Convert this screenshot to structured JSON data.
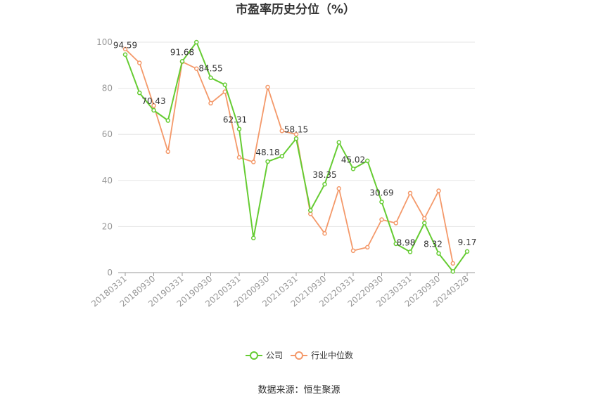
{
  "chart_data": {
    "type": "line",
    "title": "市盈率历史分位（%）",
    "source": "数据来源：恒生聚源",
    "ylim": [
      0,
      100
    ],
    "yticks": [
      "0",
      "20",
      "40",
      "60",
      "80",
      "100"
    ],
    "x_tick_labels": [
      "20180331",
      "20180930",
      "20190331",
      "20190930",
      "20200331",
      "20200930",
      "20210331",
      "20210930",
      "20220331",
      "20220930",
      "20230331",
      "20230930",
      "20240328"
    ],
    "x": [
      "20180331",
      "20180630",
      "20180930",
      "20181231",
      "20190331",
      "20190630",
      "20190930",
      "20191231",
      "20200331",
      "20200630",
      "20200930",
      "20201231",
      "20210331",
      "20210630",
      "20210930",
      "20211231",
      "20220331",
      "20220630",
      "20220930",
      "20221231",
      "20230331",
      "20230630",
      "20230930",
      "20231231",
      "20240328"
    ],
    "legend_position": "bottom-center",
    "grid": true,
    "series": [
      {
        "name": "公司",
        "color": "#66cc33",
        "values": [
          94.59,
          78,
          70.43,
          66,
          91.68,
          100,
          84.55,
          81.5,
          62.31,
          15,
          48.18,
          50.5,
          58.15,
          27,
          38.35,
          56.5,
          45.02,
          48.5,
          30.69,
          12.5,
          8.98,
          21.5,
          8.32,
          0.5,
          9.17
        ],
        "labels": [
          "94.59",
          "",
          "70.43",
          "",
          "91.68",
          "",
          "84.55",
          "",
          "62.31",
          "",
          "48.18",
          "",
          "58.15",
          "",
          "38.35",
          "",
          "45.02",
          "",
          "30.69",
          "",
          "8.98",
          "",
          "8.32",
          "",
          "9.17"
        ]
      },
      {
        "name": "行业中位数",
        "color": "#f4996a",
        "values": [
          97,
          91,
          72.5,
          52.5,
          91.5,
          88.5,
          73.5,
          78.5,
          50,
          48,
          80.5,
          61.5,
          60,
          25.5,
          17,
          36.5,
          9.5,
          11,
          23,
          21.5,
          34.5,
          23.5,
          35.5,
          4,
          null
        ],
        "labels": []
      }
    ]
  }
}
